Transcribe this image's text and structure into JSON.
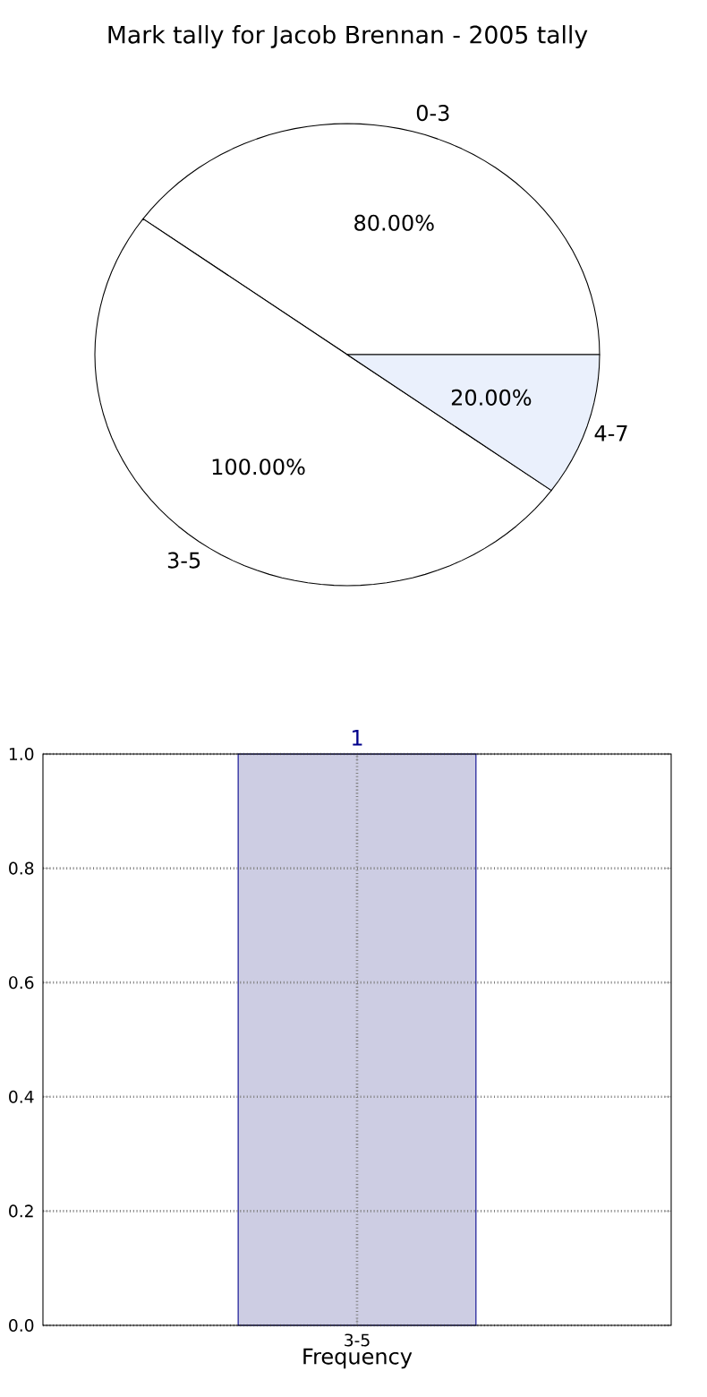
{
  "chart_data": [
    {
      "type": "pie",
      "title": "Mark tally for Jacob Brennan - 2005 tally",
      "categories": [
        "0-3",
        "3-5",
        "4-7"
      ],
      "values": [
        80,
        100,
        20
      ],
      "colors": [
        "#ffffff",
        "#ffffff",
        "#eaf0fc"
      ],
      "value_labels": [
        "80.00%",
        "100.00%",
        "20.00%"
      ]
    },
    {
      "type": "bar",
      "categories": [
        "3-5"
      ],
      "values": [
        1
      ],
      "color": "#cdcde3",
      "xlabel": "Frequency",
      "ylim": [
        0,
        1
      ],
      "yticks": [
        {
          "value": 0,
          "label": "0.0"
        },
        {
          "value": 0.2,
          "label": "0.2"
        },
        {
          "value": 0.4,
          "label": "0.4"
        },
        {
          "value": 0.6,
          "label": "0.6"
        },
        {
          "value": 0.8,
          "label": "0.8"
        },
        {
          "value": 1,
          "label": "1.0"
        }
      ],
      "grid": true,
      "data_labels": true
    }
  ]
}
